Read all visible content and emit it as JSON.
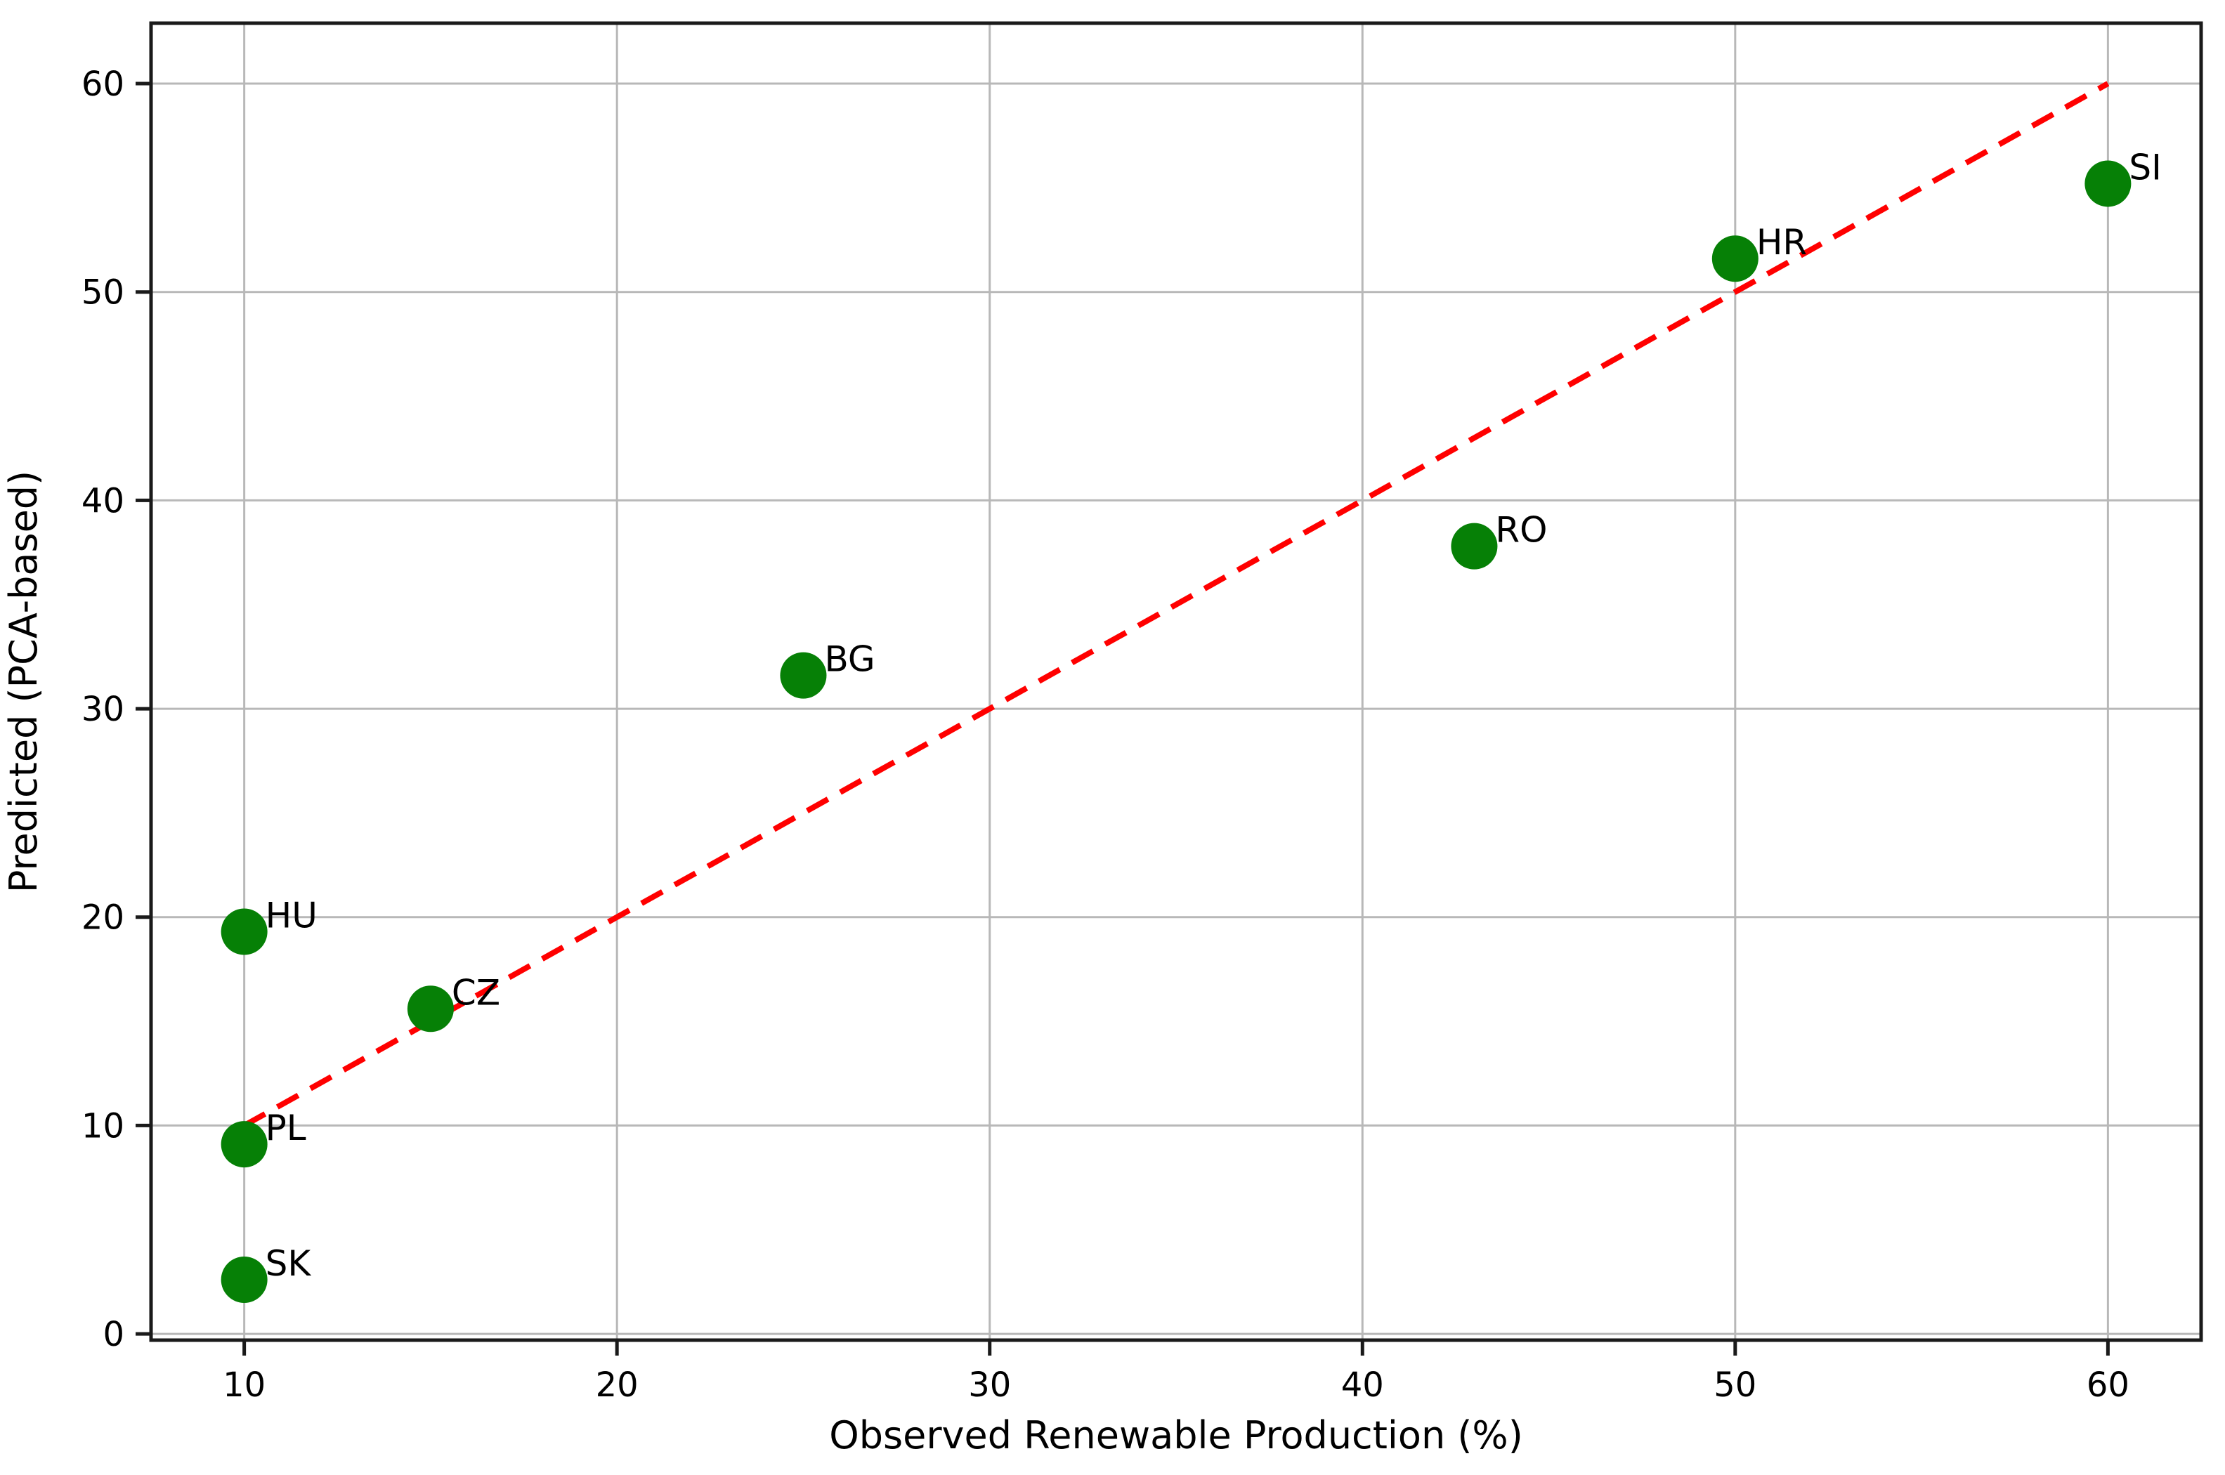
{
  "chart_data": {
    "type": "scatter",
    "title": "",
    "xlabel": "Observed Renewable Production (%)",
    "ylabel": "Predicted (PCA-based)",
    "xlim": [
      7.5,
      62.5
    ],
    "ylim": [
      -0.3,
      62.9
    ],
    "x_ticks": [
      10,
      20,
      30,
      40,
      50,
      60
    ],
    "y_ticks": [
      0,
      10,
      20,
      30,
      40,
      50,
      60
    ],
    "grid": true,
    "legend_position": "none",
    "series": [
      {
        "name": "countries",
        "marker": "circle",
        "marker_color": "#068006",
        "label_color": "#000000",
        "points": [
          {
            "label": "SK",
            "x": 10,
            "y": 2.6
          },
          {
            "label": "PL",
            "x": 10,
            "y": 9.1
          },
          {
            "label": "HU",
            "x": 10,
            "y": 19.3
          },
          {
            "label": "CZ",
            "x": 15,
            "y": 15.6
          },
          {
            "label": "BG",
            "x": 25,
            "y": 31.6
          },
          {
            "label": "RO",
            "x": 43,
            "y": 37.8
          },
          {
            "label": "HR",
            "x": 50,
            "y": 51.6
          },
          {
            "label": "SI",
            "x": 60,
            "y": 55.2
          }
        ]
      }
    ],
    "reference_line": {
      "name": "identity-line",
      "x": [
        10,
        60
      ],
      "y": [
        10,
        60
      ],
      "color": "#ff0000",
      "style": "dashed"
    },
    "colors": {
      "grid": "#b8b8b8",
      "spine": "#1a1a1a",
      "tick_text": "#000000",
      "background": "#ffffff"
    }
  }
}
